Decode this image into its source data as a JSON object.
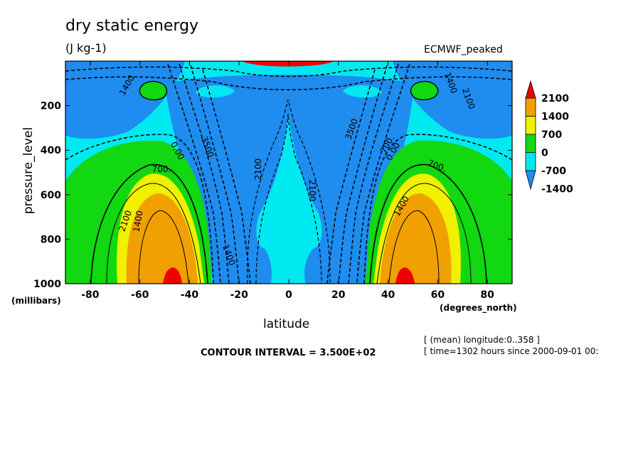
{
  "chart_data": {
    "type": "contour",
    "title": "dry static energy",
    "units": "(J kg-1)",
    "dataset": "ECMWF_peaked",
    "xlabel": "latitude",
    "xlabel_units": "(degrees_north)",
    "ylabel": "pressure_level",
    "ylabel_units": "(millibars)",
    "xlim": [
      -90,
      90
    ],
    "ylim": [
      1000,
      0
    ],
    "xticks": [
      "-80",
      "-60",
      "-40",
      "-20",
      "0",
      "20",
      "40",
      "60",
      "80"
    ],
    "yticks": [
      "200",
      "400",
      "600",
      "800",
      "1000"
    ],
    "colorbar": {
      "labels": [
        "2100",
        "1400",
        "700",
        "0",
        "-700",
        "-1400"
      ],
      "levels": [
        -1400,
        -700,
        0,
        700,
        1400,
        2100
      ],
      "colors": [
        "#1f8cf0",
        "#00e8f0",
        "#11d811",
        "#f0f000",
        "#f0a000",
        "#f00000"
      ]
    },
    "contour_labels": [
      "1400",
      "2100",
      "700.",
      "1400",
      "0.00",
      "3500",
      "1400",
      "2100",
      "2100",
      "3500",
      "700.",
      "0.00",
      "700.",
      "1400",
      "1400",
      "2100"
    ],
    "contour_interval": "CONTOUR INTERVAL = 3.500E+02",
    "notes": [
      "[ (mean) longitude:0..358 ]",
      "[ time=1302 hours since 2000-09-01 00:"
    ]
  }
}
